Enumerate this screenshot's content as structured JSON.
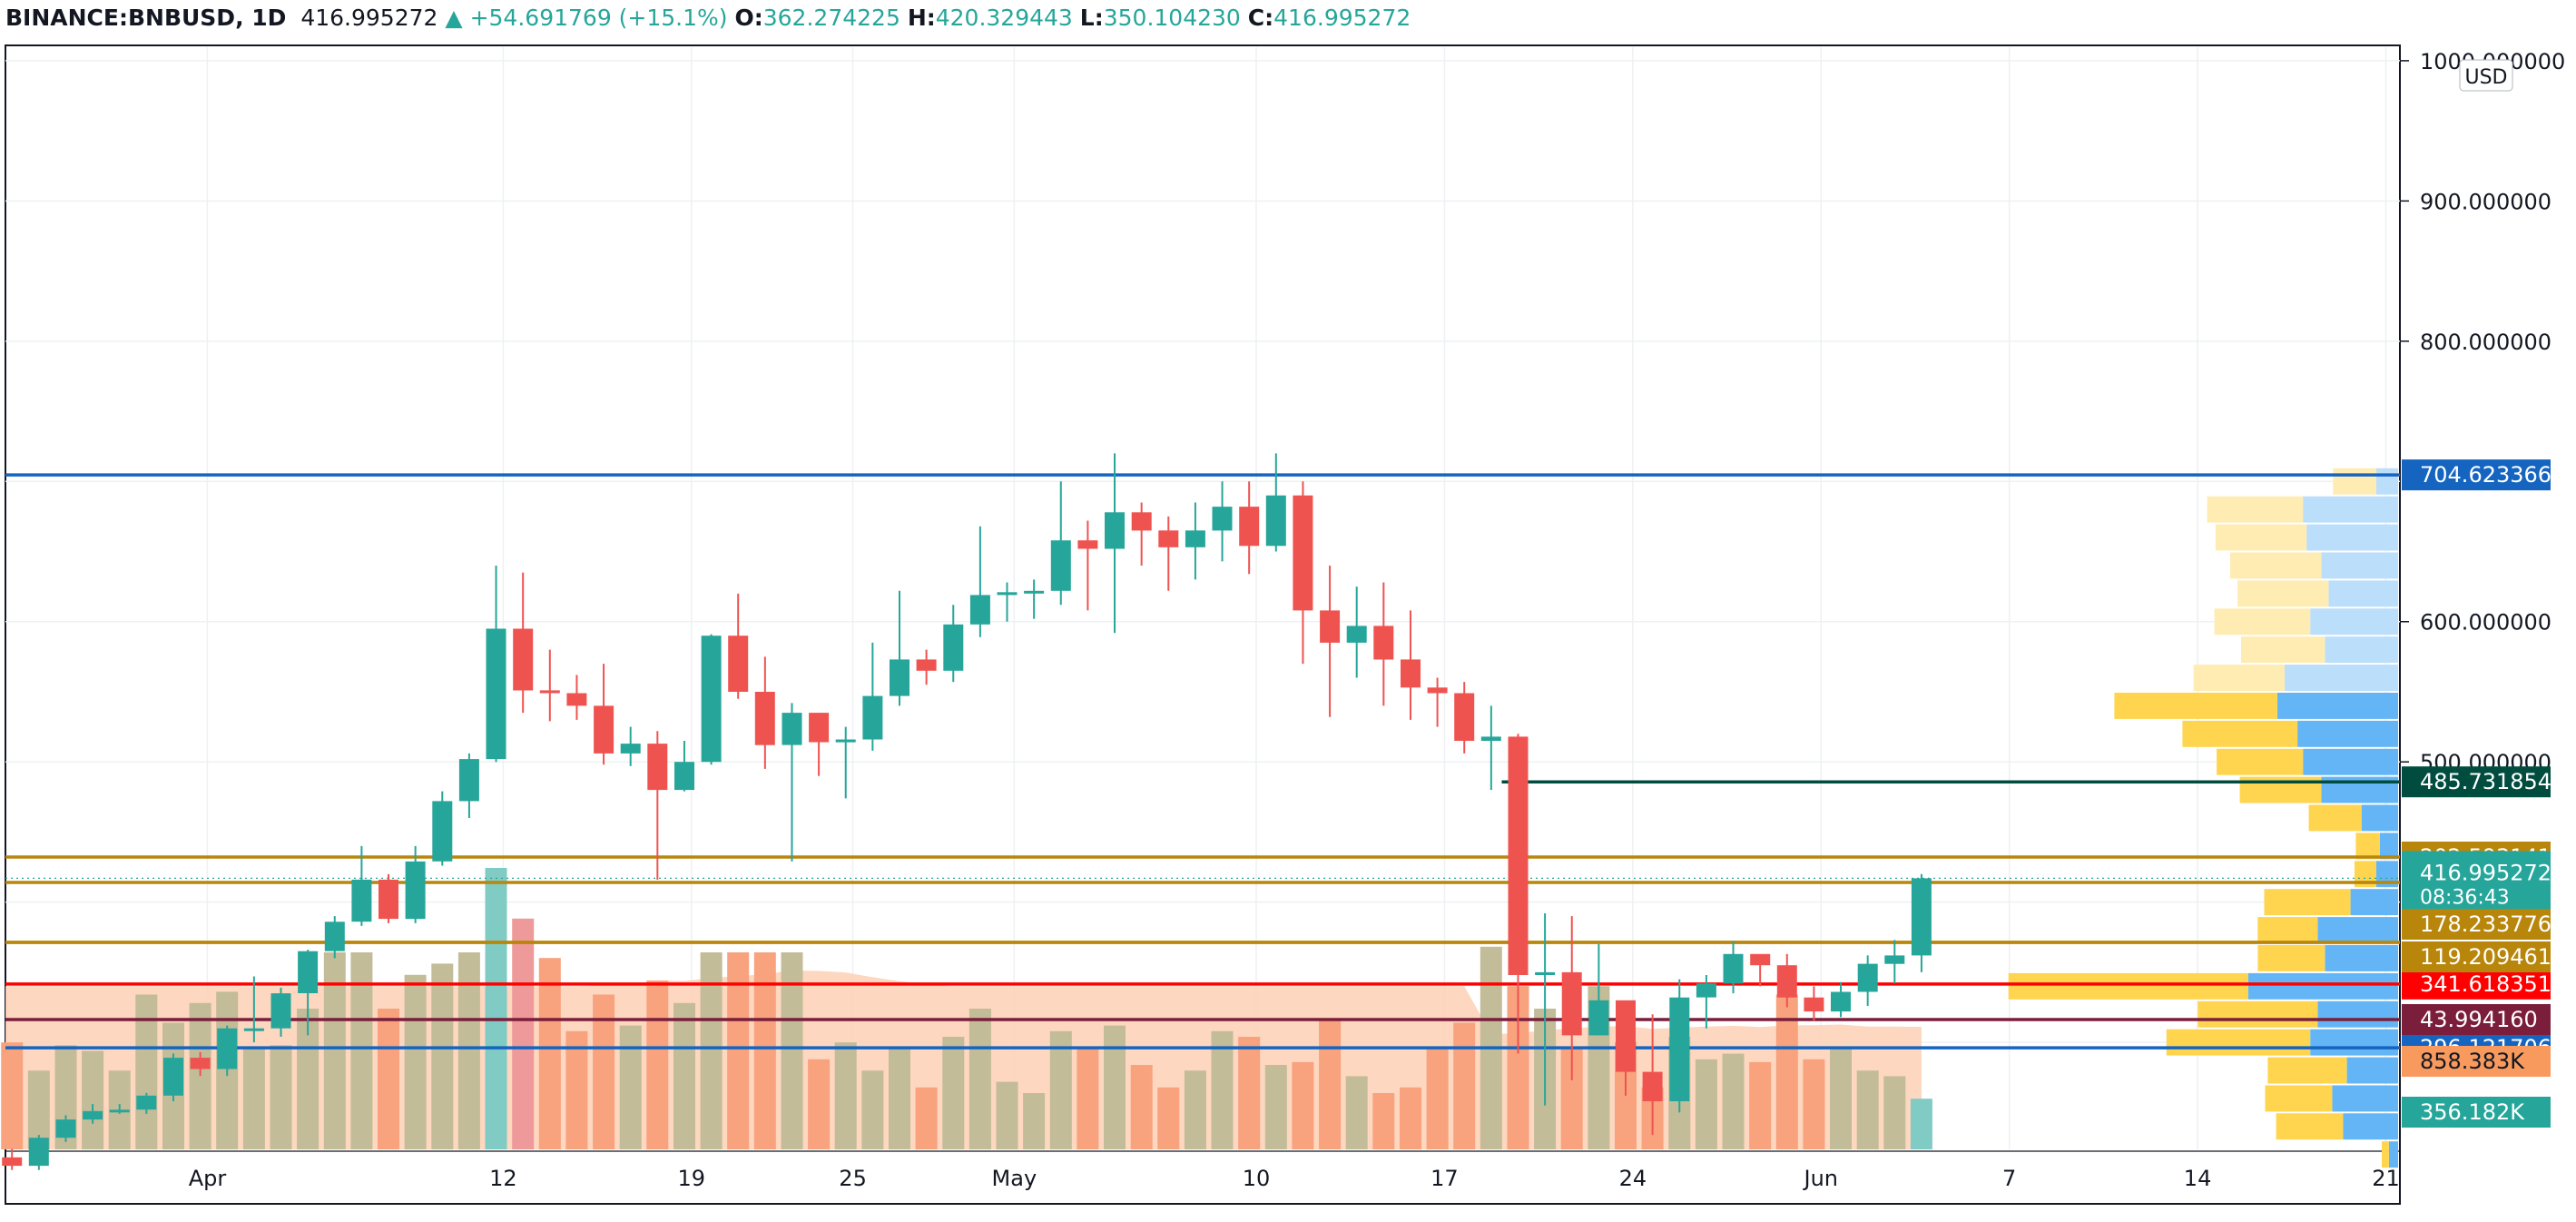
{
  "header": {
    "symbol": "BINANCE:BNBUSD, 1D",
    "last": "416.995272",
    "arrow": "▲",
    "change": "+54.691769 (+15.1%)",
    "o_label": "O:",
    "o": "362.274225",
    "h_label": "H:",
    "h": "420.329443",
    "l_label": "L:",
    "l": "350.104230",
    "c_label": "C:",
    "c": "416.995272"
  },
  "currency_label": "USD",
  "colors": {
    "up": "#26a69a",
    "down": "#ef5350",
    "vol_up": "#c3bc98",
    "vol_down": "#f8a27e",
    "vol_ma_fill": "#fdd0b4",
    "line_blue": "#1565c0",
    "line_red": "#ff0000",
    "line_dark": "#004d40",
    "line_gold": "#b8860b",
    "line_maroon": "#7b1e3c",
    "vp_up": "#64b5f6",
    "vp_down": "#ffd54f"
  },
  "chart_data": {
    "type": "candlestick",
    "price_axis": {
      "min": 0,
      "max": 1000,
      "ticks": [
        "1000.000000",
        "900.000000",
        "800.000000",
        "600.000000",
        "500.000000"
      ]
    },
    "x_ticks": [
      "Apr",
      "12",
      "19",
      "25",
      "May",
      "10",
      "17",
      "24",
      "Jun",
      "7",
      "14",
      "21"
    ],
    "candles": [
      [
        218,
        212,
        224,
        209
      ],
      [
        212,
        232,
        234,
        209
      ],
      [
        232,
        245,
        248,
        229
      ],
      [
        245,
        251,
        256,
        242
      ],
      [
        251,
        252,
        256,
        249
      ],
      [
        252,
        262,
        264,
        249
      ],
      [
        262,
        289,
        292,
        258
      ],
      [
        289,
        281,
        293,
        276
      ],
      [
        281,
        310,
        312,
        276
      ],
      [
        310,
        310,
        347,
        300
      ],
      [
        310,
        335,
        339,
        304
      ],
      [
        335,
        365,
        366,
        305
      ],
      [
        365,
        386,
        390,
        360
      ],
      [
        386,
        416,
        440,
        383
      ],
      [
        416,
        388,
        420,
        385
      ],
      [
        388,
        429,
        440,
        385
      ],
      [
        429,
        472,
        479,
        426
      ],
      [
        472,
        502,
        506,
        460
      ],
      [
        502,
        595,
        640,
        500
      ],
      [
        595,
        551,
        635,
        535
      ],
      [
        551,
        549,
        580,
        529
      ],
      [
        549,
        540,
        562,
        530
      ],
      [
        540,
        506,
        570,
        498
      ],
      [
        506,
        513,
        525,
        497
      ],
      [
        513,
        480,
        522,
        416
      ],
      [
        480,
        500,
        515,
        479
      ],
      [
        500,
        590,
        591,
        498
      ],
      [
        590,
        550,
        620,
        545
      ],
      [
        550,
        512,
        575,
        495
      ],
      [
        512,
        535,
        542,
        429
      ],
      [
        535,
        514,
        530,
        490
      ],
      [
        514,
        516,
        525,
        474
      ],
      [
        516,
        547,
        585,
        508
      ],
      [
        547,
        573,
        622,
        540
      ],
      [
        573,
        565,
        580,
        555
      ],
      [
        565,
        598,
        612,
        557
      ],
      [
        598,
        619,
        668,
        589
      ],
      [
        619,
        621,
        628,
        600
      ],
      [
        621,
        622,
        630,
        602
      ],
      [
        622,
        658,
        700,
        612
      ],
      [
        658,
        652,
        672,
        608
      ],
      [
        652,
        678,
        720,
        592
      ],
      [
        678,
        665,
        685,
        640
      ],
      [
        665,
        653,
        675,
        622
      ],
      [
        653,
        665,
        685,
        630
      ],
      [
        665,
        682,
        700,
        643
      ],
      [
        682,
        654,
        700,
        634
      ],
      [
        654,
        690,
        720,
        650
      ],
      [
        690,
        608,
        700,
        570
      ],
      [
        608,
        585,
        640,
        532
      ],
      [
        585,
        597,
        625,
        560
      ],
      [
        597,
        573,
        628,
        540
      ],
      [
        573,
        553,
        608,
        530
      ],
      [
        553,
        549,
        560,
        525
      ],
      [
        549,
        515,
        557,
        506
      ],
      [
        515,
        518,
        540,
        480
      ],
      [
        518,
        348,
        520,
        292
      ],
      [
        348,
        350,
        392,
        255
      ],
      [
        350,
        305,
        390,
        273
      ],
      [
        305,
        330,
        370,
        320
      ],
      [
        330,
        279,
        315,
        262
      ],
      [
        279,
        258,
        320,
        234
      ],
      [
        258,
        332,
        345,
        250
      ],
      [
        332,
        342,
        348,
        310
      ],
      [
        342,
        363,
        372,
        335
      ],
      [
        363,
        355,
        362,
        340
      ],
      [
        355,
        332,
        363,
        325
      ],
      [
        332,
        322,
        340,
        315
      ],
      [
        322,
        336,
        343,
        318
      ],
      [
        336,
        356,
        362,
        326
      ],
      [
        356,
        362,
        373,
        342
      ],
      [
        362,
        417,
        420,
        350
      ]
    ],
    "volumes": [
      0.38,
      0.28,
      0.37,
      0.35,
      0.28,
      0.55,
      0.45,
      0.52,
      0.56,
      0.36,
      0.37,
      0.5,
      0.7,
      0.7,
      0.5,
      0.62,
      0.66,
      0.7,
      1.0,
      0.82,
      0.68,
      0.42,
      0.55,
      0.44,
      0.6,
      0.52,
      0.7,
      0.7,
      0.7,
      0.7,
      0.32,
      0.38,
      0.28,
      0.36,
      0.22,
      0.4,
      0.5,
      0.24,
      0.2,
      0.42,
      0.36,
      0.44,
      0.3,
      0.22,
      0.28,
      0.42,
      0.4,
      0.3,
      0.31,
      0.46,
      0.26,
      0.2,
      0.22,
      0.36,
      0.45,
      0.72,
      0.58,
      0.5,
      0.36,
      0.58,
      0.38,
      0.22,
      0.4,
      0.32,
      0.34,
      0.31,
      0.55,
      0.32,
      0.36,
      0.28,
      0.26,
      0.18
    ],
    "volume_flags_down": [
      1,
      0,
      0,
      0,
      0,
      0,
      0,
      0,
      0,
      0,
      0,
      0,
      0,
      0,
      1,
      0,
      0,
      0,
      0,
      1,
      1,
      1,
      1,
      0,
      1,
      0,
      0,
      1,
      1,
      0,
      1,
      0,
      0,
      0,
      1,
      0,
      0,
      0,
      0,
      0,
      1,
      0,
      1,
      1,
      0,
      0,
      1,
      0,
      1,
      1,
      0,
      1,
      1,
      1,
      1,
      0,
      1,
      0,
      1,
      0,
      1,
      1,
      0,
      0,
      0,
      1,
      1,
      1,
      0,
      0,
      0,
      0
    ],
    "volume_axis": {
      "max": 1200000
    },
    "volume_ma_label": "858.383K",
    "volume_last_label": "356.182K",
    "horizontal_lines": [
      {
        "value": 704.623366,
        "label": "704.623366",
        "color": "#1565c0",
        "from": "start"
      },
      {
        "value": 485.731854,
        "label": "485.731854",
        "color": "#004d40",
        "from": "May 18"
      },
      {
        "value": 341.618351,
        "label": "341.618351",
        "color": "#ff0000",
        "from": "start"
      },
      {
        "value": 296.121706,
        "label": "296.121706",
        "color": "#1565c0",
        "from": "start"
      },
      {
        "value": 202.593141,
        "label": "202.593141",
        "color": "#b8860b",
        "from": "start"
      },
      {
        "value": 178.233776,
        "label": "178.233776",
        "color": "#b8860b",
        "from": "start"
      },
      {
        "value": 178.233776,
        "label": "178.233776",
        "color": "#b8860b",
        "from": "start"
      },
      {
        "value": 119.209461,
        "label": "119.209461",
        "color": "#b8860b",
        "from": "start"
      },
      {
        "value": 43.99416,
        "label": "43.994160",
        "color": "#7b1e3c",
        "from": "start"
      }
    ],
    "last_price": {
      "value": 416.995272,
      "label": "416.995272",
      "countdown": "08:36:43"
    },
    "volume_profile": [
      [
        700,
        0.12,
        0.18
      ],
      [
        680,
        0.52,
        0.4
      ],
      [
        660,
        0.5,
        0.38
      ],
      [
        640,
        0.42,
        0.38
      ],
      [
        620,
        0.38,
        0.38
      ],
      [
        600,
        0.48,
        0.4
      ],
      [
        580,
        0.4,
        0.35
      ],
      [
        560,
        0.62,
        0.38
      ],
      [
        540,
        0.66,
        0.68
      ],
      [
        520,
        0.55,
        0.48
      ],
      [
        500,
        0.52,
        0.36
      ],
      [
        480,
        0.42,
        0.34
      ],
      [
        460,
        0.2,
        0.22
      ],
      [
        440,
        0.1,
        0.1
      ],
      [
        420,
        0.12,
        0.09
      ],
      [
        400,
        0.26,
        0.36
      ],
      [
        380,
        0.44,
        0.25
      ],
      [
        360,
        0.4,
        0.28
      ],
      [
        340,
        0.82,
        1.0
      ],
      [
        320,
        0.44,
        0.5
      ],
      [
        300,
        0.48,
        0.6
      ],
      [
        280,
        0.28,
        0.33
      ],
      [
        260,
        0.36,
        0.28
      ],
      [
        240,
        0.3,
        0.28
      ],
      [
        220,
        0.05,
        0.03
      ]
    ]
  }
}
